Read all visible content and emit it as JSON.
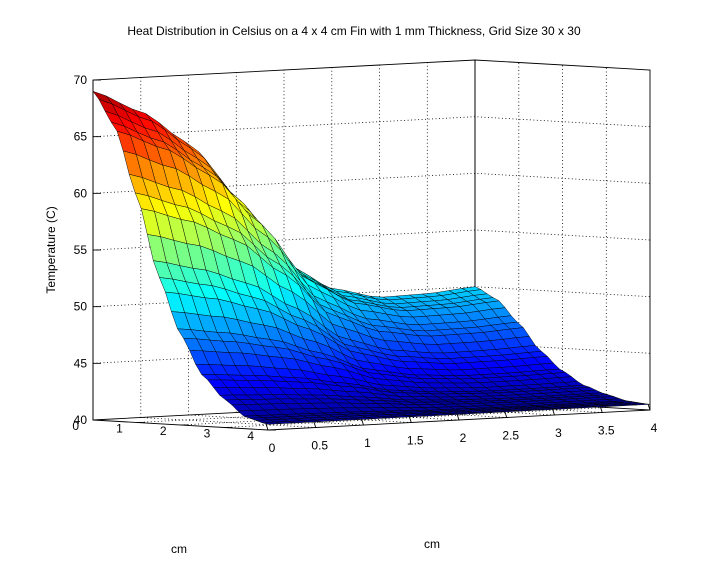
{
  "chart_data": {
    "type": "surface",
    "title": "Heat Distribution in Celsius on a 4 x 4 cm Fin with 1 mm Thickness, Grid Size 30 x 30",
    "xlabel": "cm",
    "ylabel": "cm",
    "zlabel": "Temperature (C)",
    "xlim": [
      0,
      4
    ],
    "ylim": [
      0,
      4
    ],
    "zlim": [
      40,
      70
    ],
    "x_ticks": [
      "0",
      "0.5",
      "1",
      "1.5",
      "2",
      "2.5",
      "3",
      "3.5",
      "4"
    ],
    "y_ticks": [
      "0",
      "1",
      "2",
      "3",
      "4"
    ],
    "z_ticks": [
      "40",
      "45",
      "50",
      "55",
      "60",
      "65",
      "70"
    ],
    "grid": true,
    "colormap": "jet",
    "grid_size": [
      30,
      30
    ],
    "corner_values": {
      "x0_y0": 69,
      "x0_y4": 40.5,
      "x4_y0": 50,
      "x4_y4": 40.5
    },
    "profile_along_y_at_x0": [
      [
        0,
        69
      ],
      [
        0.5,
        66
      ],
      [
        1,
        60
      ],
      [
        1.5,
        53
      ],
      [
        2,
        48
      ],
      [
        2.5,
        44.5
      ],
      [
        3,
        42.5
      ],
      [
        3.5,
        41
      ],
      [
        4,
        40.5
      ]
    ],
    "profile_along_x_at_y0": [
      [
        0,
        69
      ],
      [
        0.5,
        67
      ],
      [
        1,
        64
      ],
      [
        1.5,
        59
      ],
      [
        2,
        53
      ],
      [
        2.5,
        50.5
      ],
      [
        3,
        49.5
      ],
      [
        3.5,
        49.6
      ],
      [
        4,
        50
      ]
    ]
  }
}
